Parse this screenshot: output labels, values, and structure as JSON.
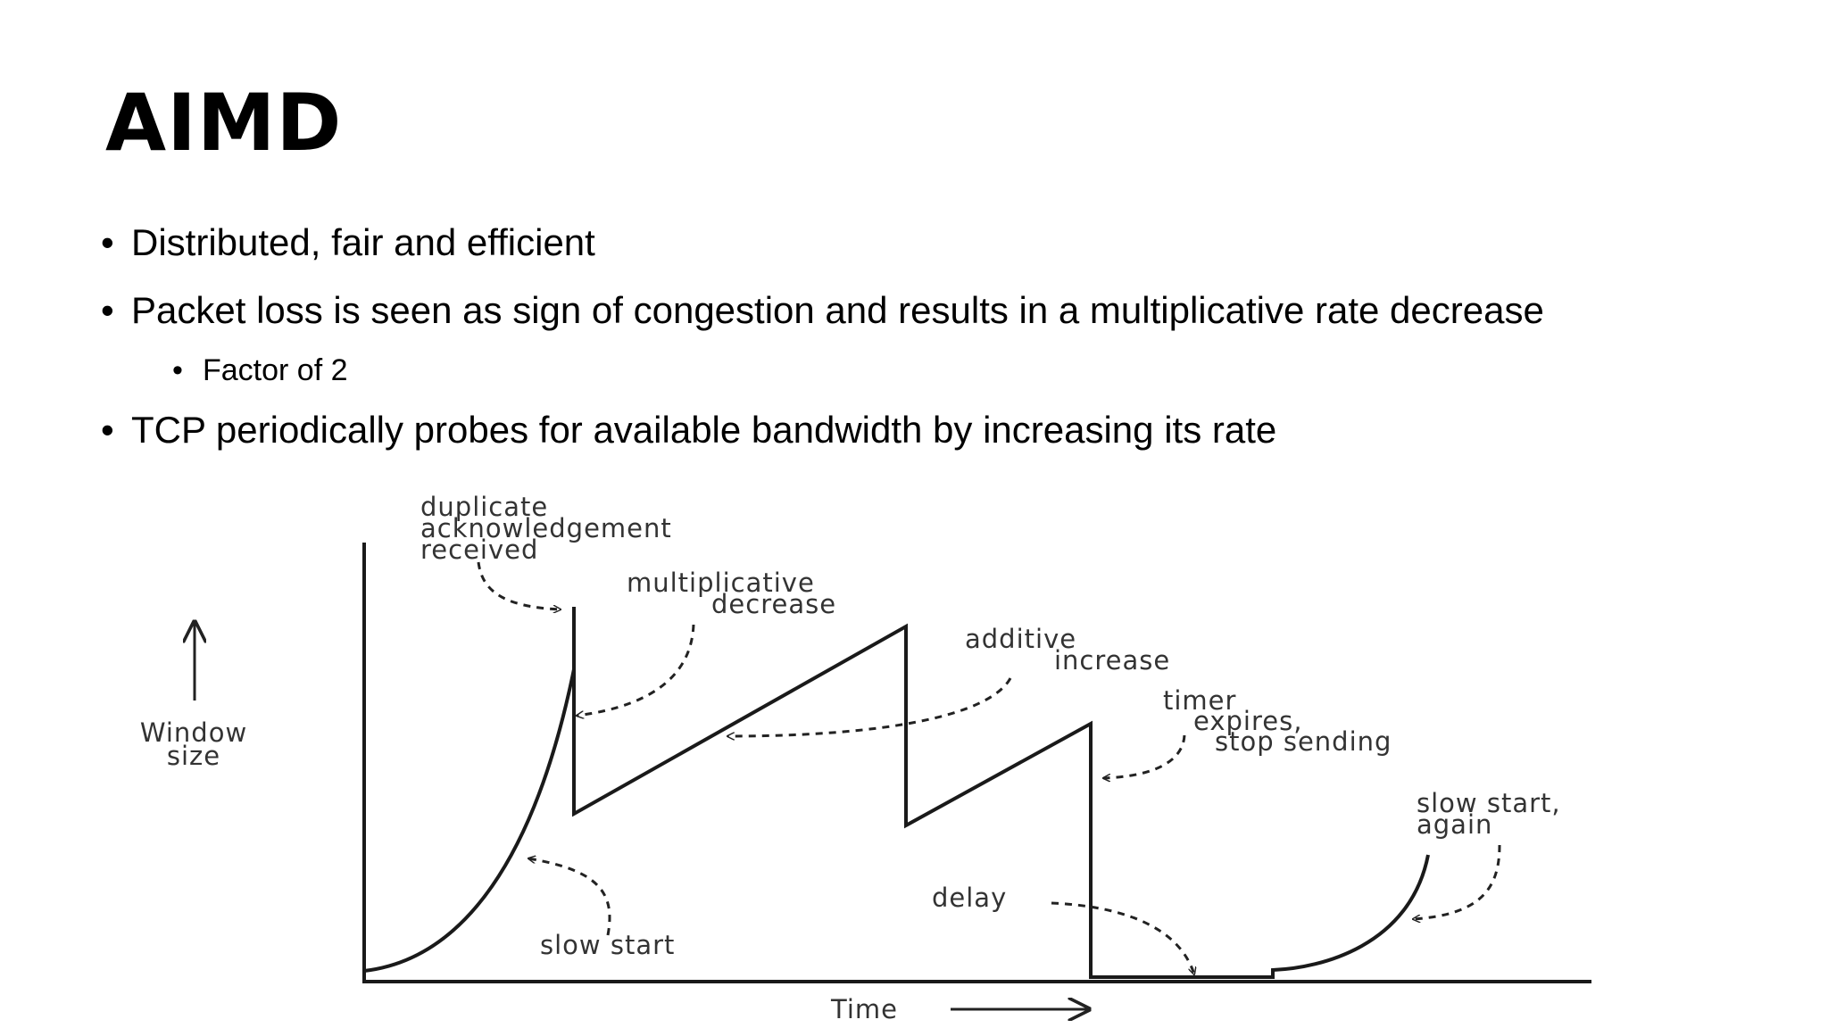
{
  "slide": {
    "title": "AIMD",
    "bullets": [
      "Distributed, fair and efficient",
      "Packet loss is seen as sign of congestion and results in a multiplicative rate decrease",
      "Factor of 2",
      "TCP periodically probes for available bandwidth by increasing its rate"
    ]
  },
  "diagram": {
    "y_axis_label": [
      "Window",
      "size"
    ],
    "x_axis_label": "Time",
    "annotations": {
      "dup_ack": [
        "duplicate",
        "acknowledgement",
        "received"
      ],
      "mult_dec": [
        "multiplicative",
        "decrease"
      ],
      "add_inc": [
        "additive",
        "increase"
      ],
      "timer": [
        "timer",
        "expires,",
        "stop sending"
      ],
      "slow_again": [
        "slow start,",
        "again"
      ],
      "delay": "delay",
      "slow_start": "slow start"
    }
  }
}
